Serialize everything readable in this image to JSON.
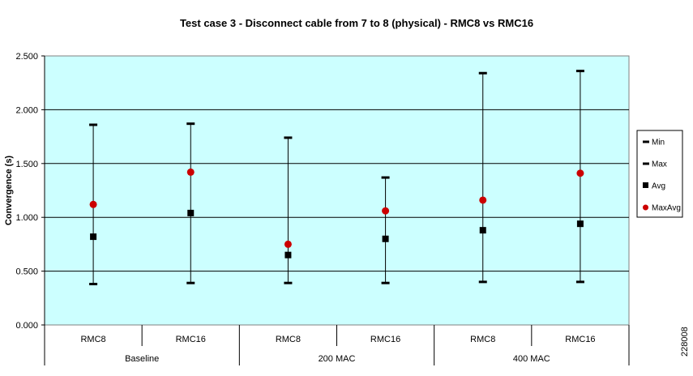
{
  "chart_data": {
    "type": "scatter",
    "title": "Test case 3 - Disconnect cable from 7 to 8 (physical) - RMC8 vs RMC16",
    "xlabel": "",
    "ylabel": "Convergence (s)",
    "ylim": [
      0,
      2.5
    ],
    "yticks": [
      "0.000",
      "0.500",
      "1.000",
      "1.500",
      "2.000",
      "2.500"
    ],
    "grid": true,
    "legend_position": "right",
    "categories": [
      "RMC8",
      "RMC16",
      "RMC8",
      "RMC16",
      "RMC8",
      "RMC16"
    ],
    "groups": [
      {
        "label": "Baseline",
        "span": 2
      },
      {
        "label": "200 MAC",
        "span": 2
      },
      {
        "label": "400 MAC",
        "span": 2
      }
    ],
    "series": [
      {
        "name": "Min",
        "values": [
          0.38,
          0.39,
          0.39,
          0.39,
          0.4,
          0.4
        ],
        "color": "#000000",
        "marker": "dash"
      },
      {
        "name": "Max",
        "values": [
          1.86,
          1.87,
          1.74,
          1.37,
          2.34,
          2.36
        ],
        "color": "#000000",
        "marker": "dash"
      },
      {
        "name": "Avg",
        "values": [
          0.82,
          1.04,
          0.65,
          0.8,
          0.88,
          0.94
        ],
        "color": "#000000",
        "marker": "square"
      },
      {
        "name": "MaxAvg",
        "values": [
          1.12,
          1.42,
          0.75,
          1.06,
          1.16,
          1.41
        ],
        "color": "#cc0000",
        "marker": "circle"
      }
    ],
    "plot_background": "#ccffff"
  },
  "side_label": "228008"
}
